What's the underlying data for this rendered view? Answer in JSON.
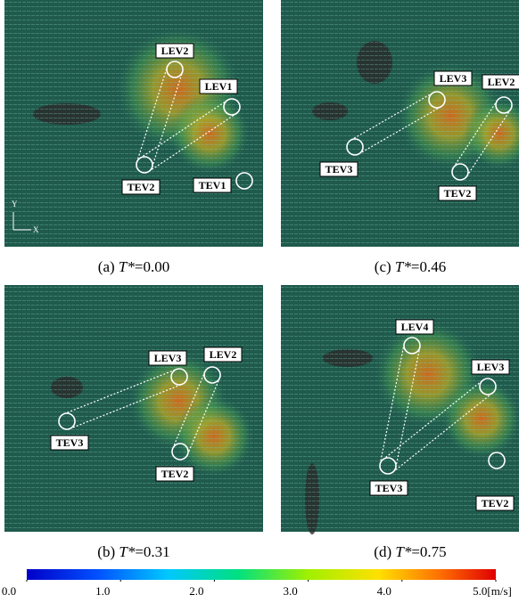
{
  "panels": [
    {
      "tag": "(a) ",
      "var": "T*",
      "value": "=0.00",
      "labels": [
        "LEV2",
        "LEV1",
        "TEV2",
        "TEV1"
      ],
      "axes": [
        "Y",
        "X"
      ]
    },
    {
      "tag": "(c) ",
      "var": "T*",
      "value": "=0.46",
      "labels": [
        "LEV3",
        "LEV2",
        "TEV3",
        "TEV2"
      ]
    },
    {
      "tag": "(b) ",
      "var": "T*",
      "value": "=0.31",
      "labels": [
        "LEV3",
        "LEV2",
        "TEV3",
        "TEV2"
      ]
    },
    {
      "tag": "(d) ",
      "var": "T*",
      "value": "=0.75",
      "labels": [
        "LEV4",
        "LEV3",
        "TEV3",
        "TEV2"
      ]
    }
  ],
  "colorbar": {
    "lim": [
      0,
      5
    ],
    "ticks": [
      {
        "value": 0,
        "label": "0.0"
      },
      {
        "value": 1,
        "label": "1.0"
      },
      {
        "value": 2,
        "label": "2.0"
      },
      {
        "value": 3,
        "label": "3.0"
      },
      {
        "value": 4,
        "label": "4.0"
      },
      {
        "value": 5,
        "label": "5.0[m/s]"
      }
    ]
  }
}
